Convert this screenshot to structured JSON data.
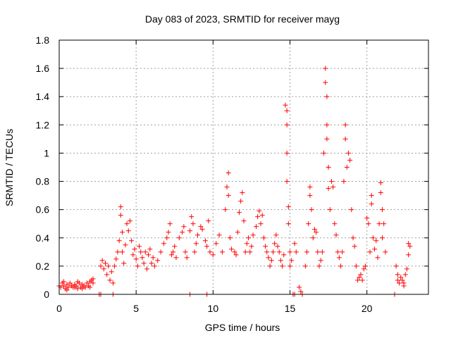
{
  "chart_data": {
    "type": "scatter",
    "title": "Day 083 of 2023, SRMTID for receiver mayg",
    "xlabel": "GPS time / hours",
    "ylabel": "SRMTID / TECUs",
    "xlim": [
      0,
      24
    ],
    "ylim": [
      0,
      1.8
    ],
    "xticks": [
      0,
      5,
      10,
      15,
      20
    ],
    "xtick_labels": [
      "0",
      "5",
      "10",
      "15",
      "20"
    ],
    "yticks": [
      0,
      0.2,
      0.4,
      0.6,
      0.8,
      1.0,
      1.2,
      1.4,
      1.6,
      1.8
    ],
    "ytick_labels": [
      "0",
      "0.2",
      "0.4",
      "0.6",
      "0.8",
      "1",
      "1.2",
      "1.4",
      "1.6",
      "1.8"
    ],
    "grid": true,
    "marker": "plus",
    "color": "#ff0000",
    "series": [
      {
        "name": "SRMTID",
        "points": [
          [
            0.0,
            0.06
          ],
          [
            0.1,
            0.05
          ],
          [
            0.2,
            0.08
          ],
          [
            0.3,
            0.06
          ],
          [
            0.4,
            0.04
          ],
          [
            0.5,
            0.07
          ],
          [
            0.6,
            0.05
          ],
          [
            0.7,
            0.08
          ],
          [
            0.8,
            0.06
          ],
          [
            0.9,
            0.05
          ],
          [
            1.0,
            0.07
          ],
          [
            1.1,
            0.06
          ],
          [
            1.2,
            0.04
          ],
          [
            1.3,
            0.08
          ],
          [
            1.4,
            0.05
          ],
          [
            1.5,
            0.07
          ],
          [
            1.6,
            0.06
          ],
          [
            1.7,
            0.05
          ],
          [
            1.8,
            0.08
          ],
          [
            1.9,
            0.06
          ],
          [
            2.0,
            0.09
          ],
          [
            2.1,
            0.1
          ],
          [
            2.2,
            0.08
          ],
          [
            2.0,
            0.05
          ],
          [
            1.5,
            0.04
          ],
          [
            1.0,
            0.05
          ],
          [
            0.5,
            0.03
          ],
          [
            0.3,
            0.09
          ],
          [
            1.2,
            0.09
          ],
          [
            2.2,
            0.11
          ],
          [
            2.6,
            0.0
          ],
          [
            2.7,
            0.2
          ],
          [
            2.8,
            0.24
          ],
          [
            2.9,
            0.18
          ],
          [
            3.0,
            0.22
          ],
          [
            3.1,
            0.14
          ],
          [
            3.2,
            0.2
          ],
          [
            3.3,
            0.1
          ],
          [
            3.4,
            0.16
          ],
          [
            3.5,
            0.08
          ],
          [
            3.6,
            0.2
          ],
          [
            3.7,
            0.25
          ],
          [
            3.8,
            0.3
          ],
          [
            3.9,
            0.38
          ],
          [
            4.0,
            0.62
          ],
          [
            4.0,
            0.56
          ],
          [
            4.1,
            0.44
          ],
          [
            4.1,
            0.3
          ],
          [
            4.2,
            0.22
          ],
          [
            4.3,
            0.35
          ],
          [
            4.4,
            0.5
          ],
          [
            4.5,
            0.45
          ],
          [
            4.6,
            0.52
          ],
          [
            4.7,
            0.38
          ],
          [
            4.8,
            0.28
          ],
          [
            4.9,
            0.32
          ],
          [
            5.0,
            0.25
          ],
          [
            5.1,
            0.2
          ],
          [
            5.2,
            0.34
          ],
          [
            5.3,
            0.3
          ],
          [
            5.4,
            0.26
          ],
          [
            5.5,
            0.22
          ],
          [
            5.6,
            0.3
          ],
          [
            5.7,
            0.18
          ],
          [
            5.8,
            0.28
          ],
          [
            5.9,
            0.32
          ],
          [
            6.0,
            0.22
          ],
          [
            6.1,
            0.26
          ],
          [
            6.2,
            0.2
          ],
          [
            6.4,
            0.24
          ],
          [
            6.6,
            0.3
          ],
          [
            6.8,
            0.36
          ],
          [
            7.0,
            0.4
          ],
          [
            7.2,
            0.5
          ],
          [
            7.1,
            0.44
          ],
          [
            7.3,
            0.28
          ],
          [
            7.4,
            0.3
          ],
          [
            7.5,
            0.34
          ],
          [
            7.6,
            0.26
          ],
          [
            7.8,
            0.4
          ],
          [
            8.0,
            0.44
          ],
          [
            8.1,
            0.48
          ],
          [
            8.2,
            0.3
          ],
          [
            8.3,
            0.26
          ],
          [
            8.5,
            0.45
          ],
          [
            8.6,
            0.55
          ],
          [
            8.7,
            0.5
          ],
          [
            8.8,
            0.3
          ],
          [
            8.9,
            0.36
          ],
          [
            9.0,
            0.42
          ],
          [
            9.2,
            0.48
          ],
          [
            9.3,
            0.46
          ],
          [
            9.5,
            0.38
          ],
          [
            9.6,
            0.34
          ],
          [
            9.7,
            0.52
          ],
          [
            9.8,
            0.3
          ],
          [
            10.0,
            0.28
          ],
          [
            10.2,
            0.36
          ],
          [
            10.4,
            0.42
          ],
          [
            10.6,
            0.3
          ],
          [
            10.8,
            0.6
          ],
          [
            10.9,
            0.76
          ],
          [
            11.0,
            0.86
          ],
          [
            11.0,
            0.7
          ],
          [
            11.1,
            0.4
          ],
          [
            11.2,
            0.32
          ],
          [
            11.4,
            0.3
          ],
          [
            11.5,
            0.28
          ],
          [
            11.6,
            0.44
          ],
          [
            11.7,
            0.58
          ],
          [
            11.8,
            0.66
          ],
          [
            11.9,
            0.72
          ],
          [
            12.0,
            0.52
          ],
          [
            12.1,
            0.3
          ],
          [
            12.2,
            0.36
          ],
          [
            12.3,
            0.4
          ],
          [
            12.4,
            0.3
          ],
          [
            12.5,
            0.34
          ],
          [
            12.6,
            0.42
          ],
          [
            12.8,
            0.48
          ],
          [
            12.9,
            0.55
          ],
          [
            13.0,
            0.59
          ],
          [
            13.1,
            0.5
          ],
          [
            13.2,
            0.56
          ],
          [
            13.3,
            0.4
          ],
          [
            13.4,
            0.34
          ],
          [
            13.5,
            0.3
          ],
          [
            13.6,
            0.26
          ],
          [
            13.7,
            0.2
          ],
          [
            13.8,
            0.24
          ],
          [
            13.9,
            0.3
          ],
          [
            14.0,
            0.36
          ],
          [
            14.1,
            0.42
          ],
          [
            14.2,
            0.34
          ],
          [
            14.3,
            0.3
          ],
          [
            14.4,
            0.24
          ],
          [
            14.5,
            0.2
          ],
          [
            14.6,
            0.28
          ],
          [
            14.7,
            1.34
          ],
          [
            14.8,
            1.3
          ],
          [
            14.8,
            1.2
          ],
          [
            14.8,
            1.0
          ],
          [
            14.8,
            0.8
          ],
          [
            14.9,
            0.62
          ],
          [
            14.9,
            0.5
          ],
          [
            15.0,
            0.3
          ],
          [
            15.1,
            0.24
          ],
          [
            15.0,
            0.2
          ],
          [
            15.3,
            0.36
          ],
          [
            15.4,
            0.3
          ],
          [
            15.3,
            0.0
          ],
          [
            15.6,
            0.05
          ],
          [
            15.7,
            0.02
          ],
          [
            15.8,
            0.0
          ],
          [
            16.0,
            0.2
          ],
          [
            16.1,
            0.3
          ],
          [
            16.2,
            0.5
          ],
          [
            16.3,
            0.7
          ],
          [
            16.3,
            0.76
          ],
          [
            16.4,
            0.6
          ],
          [
            16.5,
            0.4
          ],
          [
            16.6,
            0.46
          ],
          [
            16.7,
            0.44
          ],
          [
            16.8,
            0.3
          ],
          [
            16.9,
            0.2
          ],
          [
            17.0,
            0.24
          ],
          [
            17.1,
            0.3
          ],
          [
            17.2,
            1.0
          ],
          [
            17.3,
            1.6
          ],
          [
            17.3,
            1.5
          ],
          [
            17.4,
            1.4
          ],
          [
            17.4,
            1.2
          ],
          [
            17.4,
            1.1
          ],
          [
            17.5,
            0.9
          ],
          [
            17.5,
            0.75
          ],
          [
            17.6,
            0.6
          ],
          [
            17.7,
            0.8
          ],
          [
            17.8,
            0.76
          ],
          [
            17.9,
            0.5
          ],
          [
            18.0,
            0.42
          ],
          [
            18.1,
            0.3
          ],
          [
            18.2,
            0.26
          ],
          [
            18.3,
            0.2
          ],
          [
            18.4,
            0.3
          ],
          [
            18.5,
            0.8
          ],
          [
            18.6,
            1.2
          ],
          [
            18.6,
            1.1
          ],
          [
            18.7,
            0.9
          ],
          [
            18.8,
            1.0
          ],
          [
            18.9,
            0.95
          ],
          [
            19.0,
            0.6
          ],
          [
            19.1,
            0.4
          ],
          [
            19.2,
            0.34
          ],
          [
            19.3,
            0.2
          ],
          [
            19.4,
            0.1
          ],
          [
            19.5,
            0.12
          ],
          [
            19.6,
            0.14
          ],
          [
            19.7,
            0.1
          ],
          [
            19.8,
            0.18
          ],
          [
            19.9,
            0.2
          ],
          [
            20.0,
            0.54
          ],
          [
            20.1,
            0.5
          ],
          [
            20.2,
            0.3
          ],
          [
            20.3,
            0.7
          ],
          [
            20.3,
            0.64
          ],
          [
            20.4,
            0.4
          ],
          [
            20.5,
            0.32
          ],
          [
            20.6,
            0.38
          ],
          [
            20.7,
            0.26
          ],
          [
            20.8,
            0.5
          ],
          [
            20.9,
            0.79
          ],
          [
            20.9,
            0.72
          ],
          [
            21.0,
            0.6
          ],
          [
            21.0,
            0.4
          ],
          [
            21.1,
            0.5
          ],
          [
            21.2,
            0.3
          ],
          [
            21.8,
            0.0
          ],
          [
            21.9,
            0.2
          ],
          [
            22.0,
            0.14
          ],
          [
            22.1,
            0.08
          ],
          [
            22.2,
            0.12
          ],
          [
            22.3,
            0.1
          ],
          [
            22.4,
            0.06
          ],
          [
            22.5,
            0.14
          ],
          [
            22.6,
            0.18
          ],
          [
            22.7,
            0.28
          ],
          [
            22.7,
            0.36
          ],
          [
            22.8,
            0.34
          ],
          [
            22.4,
            0.08
          ],
          [
            22.0,
            0.1
          ],
          [
            9.6,
            0.0
          ],
          [
            8.5,
            0.0
          ],
          [
            3.5,
            0.0
          ],
          [
            2.7,
            0.0
          ],
          [
            15.2,
            0.0
          ]
        ]
      }
    ]
  }
}
